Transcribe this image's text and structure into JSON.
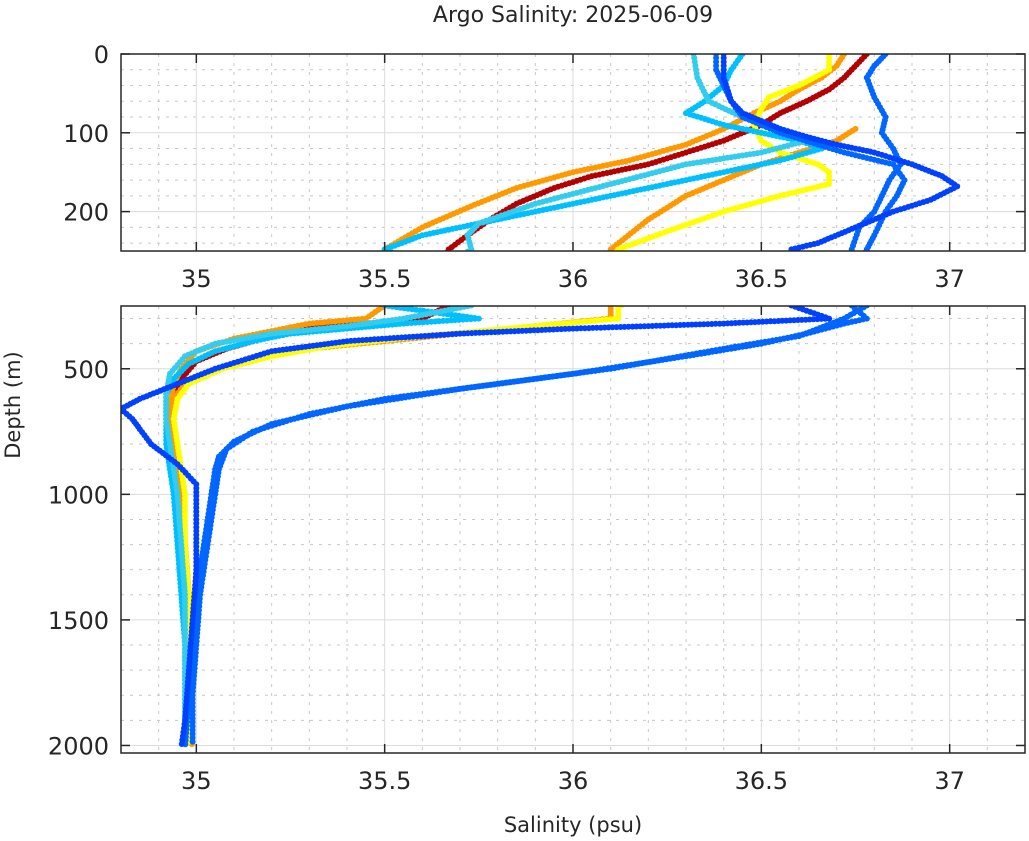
{
  "chart_data": {
    "type": "scatter",
    "title": "Argo Salinity: 2025-06-09",
    "xlabel": "Salinity (psu)",
    "ylabel": "Depth (m)",
    "grid": true,
    "minor_grid": true,
    "legend": "none",
    "panels": [
      {
        "name": "upper",
        "xlim": [
          34.8,
          37.2
        ],
        "ylim": [
          0,
          250
        ],
        "y_reversed": true,
        "xticks": [
          35,
          35.5,
          36,
          36.5,
          37
        ],
        "xtick_labels": [
          "35",
          "35.5",
          "36",
          "36.5",
          "37"
        ],
        "yticks": [
          0,
          100,
          200
        ],
        "ytick_labels": [
          "0",
          "100",
          "200"
        ]
      },
      {
        "name": "lower",
        "xlim": [
          34.8,
          37.2
        ],
        "ylim": [
          250,
          2030
        ],
        "y_reversed": true,
        "xticks": [
          35,
          35.5,
          36,
          36.5,
          37
        ],
        "xtick_labels": [
          "35",
          "35.5",
          "36",
          "36.5",
          "37"
        ],
        "yticks": [
          500,
          1000,
          1500,
          2000
        ],
        "ytick_labels": [
          "500",
          "1000",
          "1500",
          "2000"
        ]
      }
    ],
    "series": [
      {
        "name": "profile-darkred",
        "color": "#b30000",
        "points": [
          [
            36.78,
            0
          ],
          [
            36.76,
            10
          ],
          [
            36.74,
            20
          ],
          [
            36.72,
            30
          ],
          [
            36.68,
            45
          ],
          [
            36.62,
            60
          ],
          [
            36.55,
            75
          ],
          [
            36.5,
            90
          ],
          [
            36.4,
            110
          ],
          [
            36.3,
            125
          ],
          [
            36.2,
            140
          ],
          [
            36.05,
            155
          ],
          [
            35.95,
            170
          ],
          [
            35.85,
            190
          ],
          [
            35.78,
            210
          ],
          [
            35.72,
            230
          ],
          [
            35.67,
            248
          ],
          [
            35.6,
            300
          ],
          [
            35.45,
            320
          ],
          [
            35.3,
            340
          ],
          [
            35.2,
            370
          ],
          [
            35.08,
            420
          ],
          [
            35.0,
            470
          ],
          [
            34.96,
            540
          ],
          [
            34.94,
            600
          ],
          [
            34.93,
            700
          ],
          [
            34.93,
            800
          ],
          [
            34.95,
            900
          ],
          [
            34.96,
            1000
          ],
          [
            34.97,
            1200
          ],
          [
            34.98,
            1400
          ],
          [
            34.98,
            1600
          ],
          [
            34.98,
            1800
          ],
          [
            34.98,
            2000
          ]
        ]
      },
      {
        "name": "profile-orange-a",
        "color": "#ff9900",
        "points": [
          [
            36.72,
            0
          ],
          [
            36.7,
            15
          ],
          [
            36.66,
            30
          ],
          [
            36.6,
            45
          ],
          [
            36.55,
            60
          ],
          [
            36.48,
            75
          ],
          [
            36.4,
            95
          ],
          [
            36.3,
            115
          ],
          [
            36.15,
            135
          ],
          [
            36.0,
            150
          ],
          [
            35.85,
            170
          ],
          [
            35.72,
            195
          ],
          [
            35.6,
            220
          ],
          [
            35.5,
            248
          ],
          [
            35.45,
            300
          ],
          [
            35.3,
            320
          ],
          [
            35.2,
            350
          ],
          [
            35.1,
            380
          ],
          [
            35.0,
            430
          ],
          [
            34.96,
            500
          ],
          [
            34.94,
            560
          ],
          [
            34.93,
            650
          ],
          [
            34.93,
            750
          ],
          [
            34.94,
            850
          ],
          [
            34.95,
            950
          ],
          [
            34.96,
            1100
          ],
          [
            34.97,
            1300
          ],
          [
            34.98,
            1500
          ],
          [
            34.98,
            1700
          ],
          [
            34.98,
            1900
          ],
          [
            34.99,
            2010
          ]
        ]
      },
      {
        "name": "profile-orange-b",
        "color": "#ff9900",
        "points": [
          [
            36.75,
            95
          ],
          [
            36.7,
            110
          ],
          [
            36.6,
            125
          ],
          [
            36.5,
            140
          ],
          [
            36.4,
            160
          ],
          [
            36.3,
            180
          ],
          [
            36.2,
            210
          ],
          [
            36.1,
            248
          ],
          [
            36.1,
            300
          ],
          [
            35.9,
            330
          ],
          [
            35.7,
            360
          ],
          [
            35.5,
            390
          ],
          [
            35.3,
            420
          ],
          [
            35.15,
            460
          ],
          [
            35.05,
            500
          ],
          [
            34.97,
            560
          ],
          [
            34.94,
            620
          ],
          [
            34.93,
            700
          ],
          [
            34.94,
            800
          ],
          [
            34.95,
            900
          ],
          [
            34.96,
            1000
          ],
          [
            34.97,
            1200
          ],
          [
            34.98,
            1400
          ],
          [
            34.98,
            1600
          ],
          [
            34.98,
            1800
          ],
          [
            34.98,
            1990
          ]
        ]
      },
      {
        "name": "profile-yellow",
        "color": "#ffff00",
        "points": [
          [
            36.68,
            0
          ],
          [
            36.68,
            20
          ],
          [
            36.6,
            40
          ],
          [
            36.52,
            55
          ],
          [
            36.5,
            70
          ],
          [
            36.48,
            90
          ],
          [
            36.5,
            110
          ],
          [
            36.55,
            125
          ],
          [
            36.65,
            140
          ],
          [
            36.68,
            150
          ],
          [
            36.68,
            165
          ],
          [
            36.55,
            180
          ],
          [
            36.4,
            200
          ],
          [
            36.25,
            225
          ],
          [
            36.12,
            248
          ],
          [
            36.12,
            300
          ],
          [
            35.9,
            330
          ],
          [
            35.6,
            370
          ],
          [
            35.35,
            410
          ],
          [
            35.2,
            450
          ],
          [
            35.07,
            500
          ],
          [
            34.98,
            560
          ],
          [
            34.95,
            620
          ],
          [
            34.94,
            700
          ],
          [
            34.95,
            800
          ],
          [
            34.96,
            900
          ],
          [
            34.97,
            1000
          ],
          [
            34.97,
            1200
          ],
          [
            34.98,
            1400
          ],
          [
            34.98,
            1600
          ],
          [
            34.98,
            1800
          ],
          [
            34.98,
            2000
          ]
        ]
      },
      {
        "name": "profile-lightblue-a",
        "color": "#00bfff",
        "points": [
          [
            36.45,
            0
          ],
          [
            36.42,
            20
          ],
          [
            36.4,
            40
          ],
          [
            36.35,
            60
          ],
          [
            36.3,
            75
          ],
          [
            36.4,
            90
          ],
          [
            36.5,
            100
          ],
          [
            36.6,
            110
          ],
          [
            36.66,
            120
          ],
          [
            36.55,
            135
          ],
          [
            36.4,
            150
          ],
          [
            36.2,
            170
          ],
          [
            36.0,
            190
          ],
          [
            35.8,
            210
          ],
          [
            35.6,
            230
          ],
          [
            35.5,
            248
          ],
          [
            35.75,
            300
          ],
          [
            35.55,
            320
          ],
          [
            35.4,
            340
          ],
          [
            35.25,
            360
          ],
          [
            35.15,
            390
          ],
          [
            35.05,
            430
          ],
          [
            34.98,
            480
          ],
          [
            34.94,
            540
          ],
          [
            34.92,
            600
          ],
          [
            34.92,
            700
          ],
          [
            34.92,
            800
          ],
          [
            34.93,
            900
          ],
          [
            34.94,
            1000
          ],
          [
            34.95,
            1200
          ],
          [
            34.96,
            1400
          ],
          [
            34.97,
            1600
          ],
          [
            34.97,
            1800
          ],
          [
            34.97,
            2000
          ]
        ]
      },
      {
        "name": "profile-lightblue-b",
        "color": "#33ccee",
        "points": [
          [
            36.32,
            0
          ],
          [
            36.33,
            30
          ],
          [
            36.36,
            60
          ],
          [
            36.45,
            80
          ],
          [
            36.55,
            95
          ],
          [
            36.62,
            110
          ],
          [
            36.5,
            125
          ],
          [
            36.3,
            140
          ],
          [
            36.1,
            165
          ],
          [
            35.9,
            190
          ],
          [
            35.75,
            215
          ],
          [
            35.72,
            230
          ],
          [
            35.73,
            248
          ],
          [
            35.55,
            300
          ],
          [
            35.4,
            330
          ],
          [
            35.2,
            360
          ],
          [
            35.05,
            400
          ],
          [
            34.97,
            450
          ],
          [
            34.93,
            520
          ],
          [
            34.92,
            600
          ],
          [
            34.92,
            700
          ],
          [
            34.93,
            800
          ],
          [
            34.94,
            900
          ],
          [
            34.95,
            1000
          ],
          [
            34.96,
            1200
          ],
          [
            34.97,
            1400
          ],
          [
            34.97,
            1600
          ],
          [
            34.97,
            1800
          ],
          [
            34.97,
            2000
          ]
        ]
      },
      {
        "name": "profile-blue-a",
        "color": "#0066ff",
        "points": [
          [
            36.83,
            0
          ],
          [
            36.8,
            15
          ],
          [
            36.78,
            30
          ],
          [
            36.8,
            55
          ],
          [
            36.83,
            80
          ],
          [
            36.82,
            100
          ],
          [
            36.85,
            120
          ],
          [
            36.87,
            140
          ],
          [
            36.84,
            160
          ],
          [
            36.82,
            180
          ],
          [
            36.8,
            200
          ],
          [
            36.76,
            220
          ],
          [
            36.74,
            248
          ],
          [
            36.78,
            300
          ],
          [
            36.72,
            320
          ],
          [
            36.62,
            360
          ],
          [
            36.5,
            400
          ],
          [
            36.3,
            450
          ],
          [
            36.0,
            520
          ],
          [
            35.7,
            580
          ],
          [
            35.4,
            650
          ],
          [
            35.2,
            720
          ],
          [
            35.1,
            790
          ],
          [
            35.06,
            850
          ],
          [
            35.05,
            900
          ],
          [
            35.04,
            1000
          ],
          [
            35.02,
            1200
          ],
          [
            35.0,
            1400
          ],
          [
            34.99,
            1600
          ],
          [
            34.98,
            1800
          ],
          [
            34.97,
            2010
          ]
        ]
      },
      {
        "name": "profile-blue-b",
        "color": "#0066ff",
        "points": [
          [
            36.38,
            0
          ],
          [
            36.38,
            20
          ],
          [
            36.4,
            40
          ],
          [
            36.42,
            60
          ],
          [
            36.45,
            80
          ],
          [
            36.55,
            100
          ],
          [
            36.65,
            115
          ],
          [
            36.72,
            125
          ],
          [
            36.85,
            140
          ],
          [
            36.88,
            160
          ],
          [
            36.86,
            180
          ],
          [
            36.83,
            200
          ],
          [
            36.8,
            230
          ],
          [
            36.78,
            248
          ],
          [
            36.72,
            300
          ],
          [
            36.6,
            370
          ],
          [
            36.4,
            420
          ],
          [
            36.1,
            500
          ],
          [
            35.8,
            560
          ],
          [
            35.5,
            620
          ],
          [
            35.3,
            680
          ],
          [
            35.15,
            750
          ],
          [
            35.08,
            820
          ],
          [
            35.06,
            900
          ],
          [
            35.05,
            1000
          ],
          [
            35.03,
            1200
          ],
          [
            35.01,
            1400
          ],
          [
            35.0,
            1600
          ],
          [
            34.99,
            1800
          ],
          [
            34.99,
            2000
          ]
        ]
      },
      {
        "name": "profile-blue-c",
        "color": "#0040ff",
        "points": [
          [
            36.4,
            0
          ],
          [
            36.4,
            30
          ],
          [
            36.42,
            60
          ],
          [
            36.45,
            75
          ],
          [
            36.5,
            85
          ],
          [
            36.55,
            95
          ],
          [
            36.62,
            105
          ],
          [
            36.7,
            115
          ],
          [
            36.8,
            125
          ],
          [
            36.9,
            140
          ],
          [
            36.98,
            155
          ],
          [
            37.02,
            168
          ],
          [
            36.95,
            185
          ],
          [
            36.85,
            200
          ],
          [
            36.75,
            220
          ],
          [
            36.65,
            240
          ],
          [
            36.58,
            248
          ],
          [
            36.68,
            300
          ],
          [
            36.4,
            320
          ],
          [
            36.0,
            340
          ],
          [
            35.7,
            360
          ],
          [
            35.4,
            390
          ],
          [
            35.2,
            430
          ],
          [
            35.05,
            500
          ],
          [
            34.95,
            560
          ],
          [
            34.85,
            620
          ],
          [
            34.8,
            660
          ],
          [
            34.83,
            700
          ],
          [
            34.85,
            740
          ],
          [
            34.88,
            800
          ],
          [
            34.95,
            880
          ],
          [
            35.0,
            960
          ],
          [
            35.0,
            1100
          ],
          [
            35.0,
            1300
          ],
          [
            34.99,
            1500
          ],
          [
            34.98,
            1700
          ],
          [
            34.97,
            1900
          ],
          [
            34.96,
            2010
          ]
        ]
      }
    ]
  }
}
